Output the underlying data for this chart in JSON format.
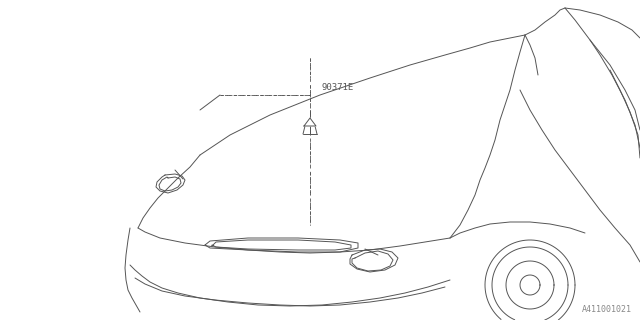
{
  "bg_color": "#ffffff",
  "line_color": "#555555",
  "part_label": "90371E",
  "diagram_id": "A411001021",
  "fig_width": 6.4,
  "fig_height": 3.2,
  "dpi": 100
}
